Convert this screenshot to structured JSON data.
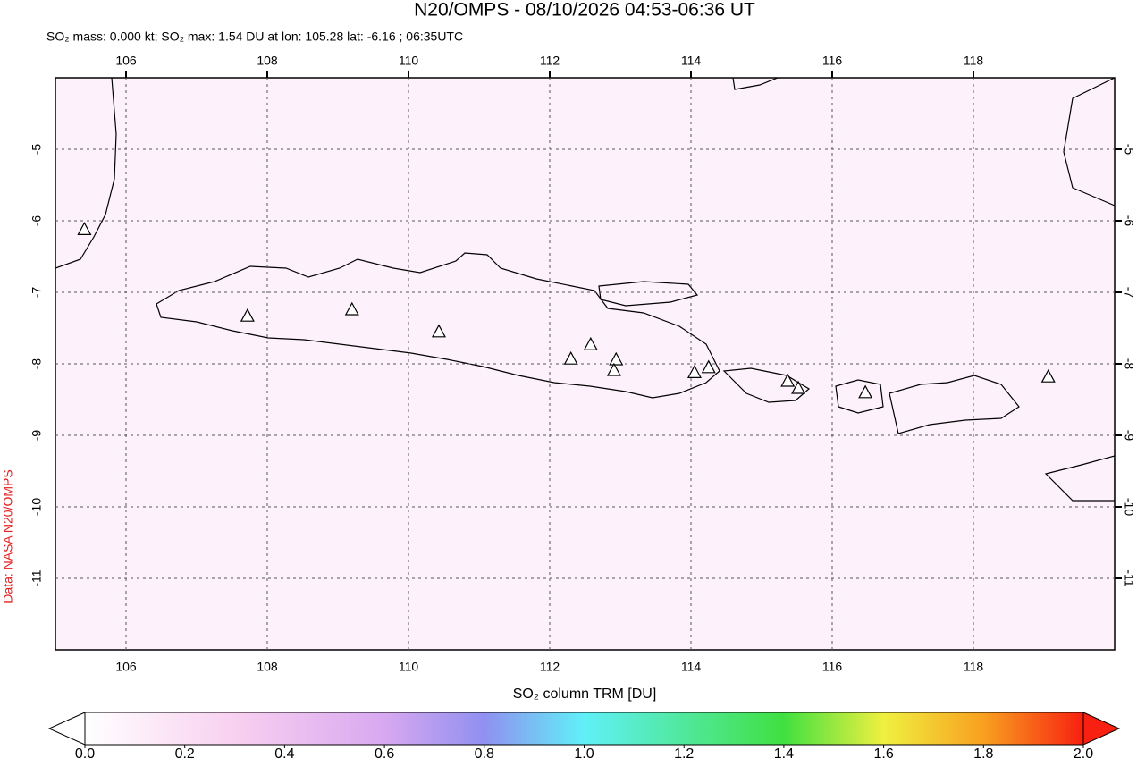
{
  "header": {
    "title": "N20/OMPS - 08/10/2026 04:53-06:36 UT",
    "subtitle": "SO₂ mass: 0.000 kt; SO₂ max: 1.54 DU at lon: 105.28 lat: -6.16 ; 06:35UTC",
    "credit": "Data: NASA N20/OMPS"
  },
  "map": {
    "xlim": [
      105,
      120
    ],
    "ylim": [
      -12,
      -4
    ],
    "xticks": [
      106,
      108,
      110,
      112,
      114,
      116,
      118
    ],
    "yticks": [
      -5,
      -6,
      -7,
      -8,
      -9,
      -10,
      -11
    ],
    "grid": true,
    "volcanoes": [
      [
        105.41,
        -6.13
      ],
      [
        107.72,
        -7.34
      ],
      [
        109.2,
        -7.25
      ],
      [
        110.43,
        -7.56
      ],
      [
        112.3,
        -7.94
      ],
      [
        112.58,
        -7.74
      ],
      [
        112.94,
        -7.95
      ],
      [
        112.91,
        -8.1
      ],
      [
        114.05,
        -8.13
      ],
      [
        114.25,
        -8.06
      ],
      [
        115.37,
        -8.25
      ],
      [
        115.52,
        -8.35
      ],
      [
        116.47,
        -8.41
      ],
      [
        119.06,
        -8.19
      ]
    ]
  },
  "colorbar": {
    "label": "SO₂ column TRM [DU]",
    "range": [
      0,
      2
    ],
    "ticks": [
      {
        "value": 0,
        "label": "0.0"
      },
      {
        "value": 0.2,
        "label": "0.2"
      },
      {
        "value": 0.4,
        "label": "0.4"
      },
      {
        "value": 0.6,
        "label": "0.6"
      },
      {
        "value": 0.8,
        "label": "0.8"
      },
      {
        "value": 1,
        "label": "1.0"
      },
      {
        "value": 1.2,
        "label": "1.2"
      },
      {
        "value": 1.4,
        "label": "1.4"
      },
      {
        "value": 1.6,
        "label": "1.6"
      },
      {
        "value": 1.8,
        "label": "1.8"
      },
      {
        "value": 2,
        "label": "2.0"
      }
    ]
  }
}
